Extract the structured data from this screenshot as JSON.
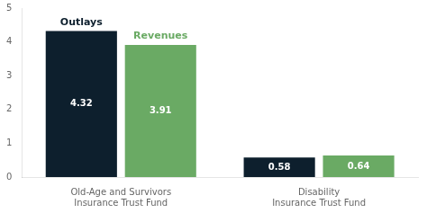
{
  "chart_data": {
    "type": "bar",
    "categories": [
      "Old-Age and Survivors Insurance Trust Fund",
      "Disability Insurance Trust Fund"
    ],
    "series": [
      {
        "name": "Outlays",
        "color": "#0d1f2d",
        "values": [
          4.32,
          0.58
        ]
      },
      {
        "name": "Revenues",
        "color": "#6aaa64",
        "values": [
          3.91,
          0.64
        ]
      }
    ],
    "ylim": [
      0,
      5
    ],
    "yticks": [
      0,
      1,
      2,
      3,
      4,
      5
    ],
    "grid": false,
    "data_labels": true
  }
}
